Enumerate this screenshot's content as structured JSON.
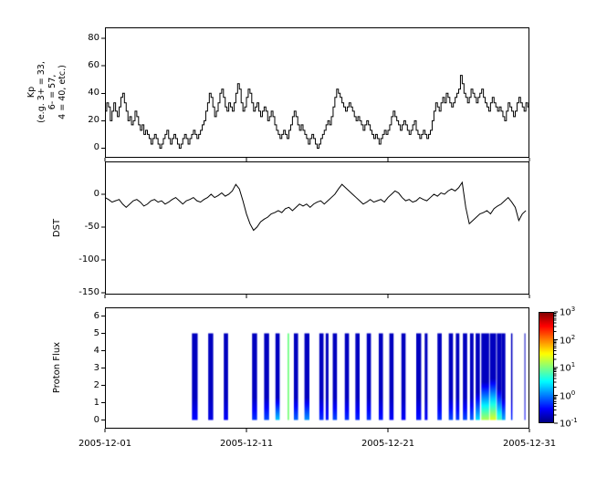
{
  "figure": {
    "background": "#ffffff",
    "frame_color": "#000000",
    "line_color": "#000000"
  },
  "xaxis": {
    "tick_days": [
      0,
      10,
      20,
      30
    ],
    "tick_labels": [
      "2005-12-01",
      "2005-12-11",
      "2005-12-21",
      "2005-12-31"
    ]
  },
  "colorbar": {
    "scale": "log",
    "colormap": "jet",
    "tick_exponents": [
      3,
      2,
      1,
      0,
      -1
    ],
    "value_range_log10": [
      -1,
      3
    ]
  },
  "chart_data": [
    {
      "id": "kp",
      "type": "line",
      "drawstyle": "steps-post",
      "ylabel": "Kp\n(e.g. 3+ = 33,\n6- = 57,\n4 = 40, etc.)",
      "xlim": [
        0,
        30
      ],
      "ylim": [
        -7,
        88
      ],
      "yticks": [
        0,
        20,
        40,
        60,
        80
      ],
      "x_step_days": 0.125,
      "line_color": "#000000",
      "values": [
        27,
        33,
        30,
        20,
        27,
        33,
        27,
        23,
        30,
        37,
        40,
        33,
        27,
        20,
        23,
        17,
        20,
        27,
        23,
        17,
        13,
        17,
        10,
        13,
        10,
        7,
        3,
        7,
        10,
        7,
        3,
        0,
        3,
        7,
        10,
        13,
        7,
        3,
        7,
        10,
        7,
        3,
        0,
        3,
        7,
        10,
        7,
        3,
        7,
        10,
        13,
        10,
        7,
        10,
        13,
        17,
        20,
        27,
        33,
        40,
        37,
        30,
        23,
        27,
        33,
        40,
        43,
        37,
        30,
        27,
        33,
        30,
        27,
        33,
        40,
        47,
        43,
        33,
        27,
        30,
        37,
        43,
        40,
        33,
        27,
        30,
        33,
        27,
        23,
        27,
        30,
        27,
        20,
        23,
        27,
        23,
        17,
        13,
        10,
        7,
        10,
        13,
        10,
        7,
        13,
        17,
        23,
        27,
        23,
        17,
        13,
        17,
        13,
        10,
        7,
        3,
        7,
        10,
        7,
        3,
        0,
        3,
        7,
        10,
        13,
        17,
        20,
        17,
        23,
        30,
        37,
        43,
        40,
        37,
        33,
        30,
        27,
        30,
        33,
        30,
        27,
        23,
        20,
        23,
        20,
        17,
        13,
        17,
        20,
        17,
        13,
        10,
        7,
        10,
        7,
        3,
        7,
        10,
        13,
        10,
        13,
        17,
        23,
        27,
        23,
        20,
        17,
        13,
        17,
        20,
        17,
        13,
        10,
        13,
        17,
        20,
        13,
        10,
        7,
        10,
        13,
        10,
        7,
        10,
        13,
        20,
        27,
        33,
        30,
        27,
        33,
        37,
        33,
        40,
        37,
        33,
        30,
        33,
        37,
        40,
        43,
        53,
        47,
        40,
        37,
        33,
        37,
        43,
        40,
        37,
        33,
        37,
        40,
        43,
        37,
        33,
        30,
        27,
        33,
        37,
        33,
        30,
        27,
        30,
        27,
        23,
        20,
        27,
        33,
        30,
        27,
        23,
        27,
        33,
        37,
        33,
        30,
        27,
        33,
        30
      ]
    },
    {
      "id": "dst",
      "type": "line",
      "ylabel": "DST",
      "xlim": [
        0,
        30
      ],
      "ylim": [
        -153,
        50
      ],
      "yticks": [
        0,
        -50,
        -100,
        -150
      ],
      "x_step_days": 0.25,
      "line_color": "#000000",
      "values": [
        -5,
        -8,
        -12,
        -10,
        -8,
        -15,
        -20,
        -15,
        -10,
        -8,
        -12,
        -18,
        -15,
        -10,
        -8,
        -12,
        -10,
        -15,
        -12,
        -8,
        -5,
        -10,
        -15,
        -10,
        -8,
        -5,
        -10,
        -12,
        -8,
        -5,
        0,
        -5,
        -2,
        2,
        -3,
        0,
        5,
        15,
        8,
        -10,
        -30,
        -45,
        -55,
        -50,
        -42,
        -38,
        -35,
        -30,
        -28,
        -25,
        -28,
        -22,
        -20,
        -25,
        -20,
        -15,
        -18,
        -15,
        -20,
        -15,
        -12,
        -10,
        -15,
        -10,
        -5,
        0,
        8,
        15,
        10,
        5,
        0,
        -5,
        -10,
        -15,
        -12,
        -8,
        -12,
        -10,
        -8,
        -12,
        -5,
        0,
        5,
        2,
        -5,
        -10,
        -8,
        -12,
        -10,
        -5,
        -8,
        -10,
        -5,
        0,
        -3,
        2,
        0,
        5,
        8,
        5,
        10,
        18,
        -20,
        -45,
        -40,
        -35,
        -30,
        -28,
        -25,
        -30,
        -22,
        -18,
        -15,
        -10,
        -5,
        -12,
        -20,
        -40,
        -30,
        -25
      ]
    },
    {
      "id": "proton_flux",
      "type": "heatmap",
      "ylabel": "Proton Flux",
      "xlim": [
        0,
        30
      ],
      "ylim": [
        -0.5,
        6.5
      ],
      "yticks": [
        0,
        1,
        2,
        3,
        4,
        5,
        6
      ],
      "bar_y_extent": [
        0,
        5
      ],
      "colormap": "jet",
      "value_range_log10": [
        -1,
        3
      ],
      "default_base_log": -0.75,
      "default_rise": 1.3,
      "bars": [
        {
          "day": 6.15,
          "width": 0.4,
          "bottom_log": -0.45
        },
        {
          "day": 7.3,
          "width": 0.35,
          "bottom_log": -0.6
        },
        {
          "day": 8.4,
          "width": 0.3,
          "bottom_log": -0.5
        },
        {
          "day": 10.4,
          "width": 0.35,
          "bottom_log": -0.3
        },
        {
          "day": 11.25,
          "width": 0.35,
          "bottom_log": -0.2
        },
        {
          "day": 12.05,
          "width": 0.3,
          "bottom_log": 0.3
        },
        {
          "day": 12.9,
          "width": 0.12,
          "bottom_log": 1.0,
          "base_log": 0.95,
          "rise": 5
        },
        {
          "day": 13.35,
          "width": 0.3,
          "bottom_log": -0.1
        },
        {
          "day": 14.1,
          "width": 0.35,
          "bottom_log": 0.1
        },
        {
          "day": 15.15,
          "width": 0.3,
          "bottom_log": -0.3
        },
        {
          "day": 15.6,
          "width": 0.2,
          "bottom_log": -0.4
        },
        {
          "day": 16.1,
          "width": 0.3,
          "bottom_log": -0.2
        },
        {
          "day": 16.95,
          "width": 0.3,
          "bottom_log": -0.3
        },
        {
          "day": 17.7,
          "width": 0.3,
          "bottom_log": -0.35
        },
        {
          "day": 18.5,
          "width": 0.3,
          "bottom_log": -0.3
        },
        {
          "day": 19.35,
          "width": 0.3,
          "bottom_log": -0.4
        },
        {
          "day": 20.1,
          "width": 0.3,
          "bottom_log": -0.5
        },
        {
          "day": 20.95,
          "width": 0.3,
          "bottom_log": -0.5
        },
        {
          "day": 22.0,
          "width": 0.35,
          "bottom_log": -0.4
        },
        {
          "day": 22.6,
          "width": 0.2,
          "bottom_log": -0.5
        },
        {
          "day": 23.5,
          "width": 0.3,
          "bottom_log": -0.3
        },
        {
          "day": 24.3,
          "width": 0.3,
          "bottom_log": -0.2
        },
        {
          "day": 24.8,
          "width": 0.25,
          "bottom_log": -0.25
        },
        {
          "day": 25.3,
          "width": 0.3,
          "bottom_log": -0.2
        },
        {
          "day": 25.8,
          "width": 0.25,
          "bottom_log": -0.1
        },
        {
          "day": 26.2,
          "width": 0.3,
          "bottom_log": 0.4,
          "rise": 1.6
        },
        {
          "day": 26.6,
          "width": 0.55,
          "bottom_log": 1.2,
          "rise": 2.2
        },
        {
          "day": 27.2,
          "width": 0.45,
          "bottom_log": 1.4,
          "rise": 2.4
        },
        {
          "day": 27.7,
          "width": 0.35,
          "bottom_log": 0.8,
          "rise": 1.8
        },
        {
          "day": 28.05,
          "width": 0.25,
          "bottom_log": 0.2
        },
        {
          "day": 28.7,
          "width": 0.1,
          "bottom_log": -0.3
        },
        {
          "day": 29.65,
          "width": 0.06,
          "bottom_log": -0.5
        }
      ]
    }
  ]
}
